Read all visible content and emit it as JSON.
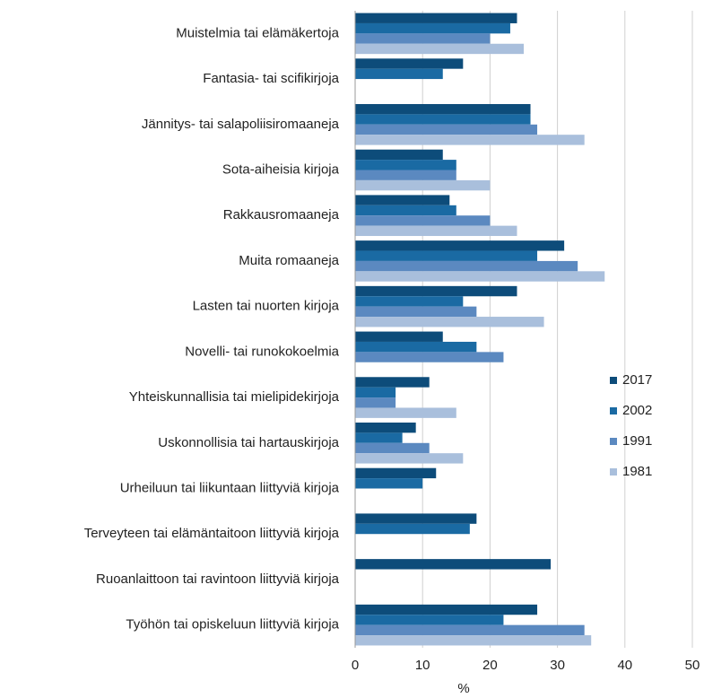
{
  "chart_data": {
    "type": "barh",
    "categories": [
      "Muistelmia tai elämäkertoja",
      "Fantasia- tai scifikirjoja",
      "Jännitys- tai salapoliisiromaaneja",
      "Sota-aiheisia kirjoja",
      "Rakkausromaaneja",
      "Muita romaaneja",
      "Lasten tai nuorten kirjoja",
      "Novelli- tai runokokoelmia",
      "Yhteiskunnallisia tai mielipidekirjoja",
      "Uskonnollisia tai hartauskirjoja",
      "Urheiluun tai liikuntaan liittyviä kirjoja",
      "Terveyteen tai elämäntaitoon liittyviä kirjoja",
      "Ruoanlaittoon tai ravintoon liittyviä kirjoja",
      "Työhön tai opiskeluun liittyviä kirjoja"
    ],
    "series": [
      {
        "name": "2017",
        "color": "#0d4c7a",
        "values": [
          24,
          16,
          26,
          13,
          14,
          31,
          24,
          13,
          11,
          9,
          12,
          18,
          29,
          27
        ]
      },
      {
        "name": "2002",
        "color": "#1a6aa3",
        "values": [
          23,
          13,
          26,
          15,
          15,
          27,
          16,
          18,
          6,
          7,
          10,
          17,
          null,
          22
        ]
      },
      {
        "name": "1991",
        "color": "#5b89c0",
        "values": [
          20,
          null,
          27,
          15,
          20,
          33,
          18,
          22,
          6,
          11,
          null,
          null,
          null,
          34
        ]
      },
      {
        "name": "1981",
        "color": "#a9bfdc",
        "values": [
          25,
          null,
          34,
          20,
          24,
          37,
          28,
          null,
          15,
          16,
          null,
          null,
          null,
          35
        ]
      }
    ],
    "xlim": [
      0,
      50
    ],
    "xticks": [
      0,
      10,
      20,
      30,
      40,
      50
    ],
    "xlabel": "%",
    "grid": true,
    "legend": "right"
  }
}
